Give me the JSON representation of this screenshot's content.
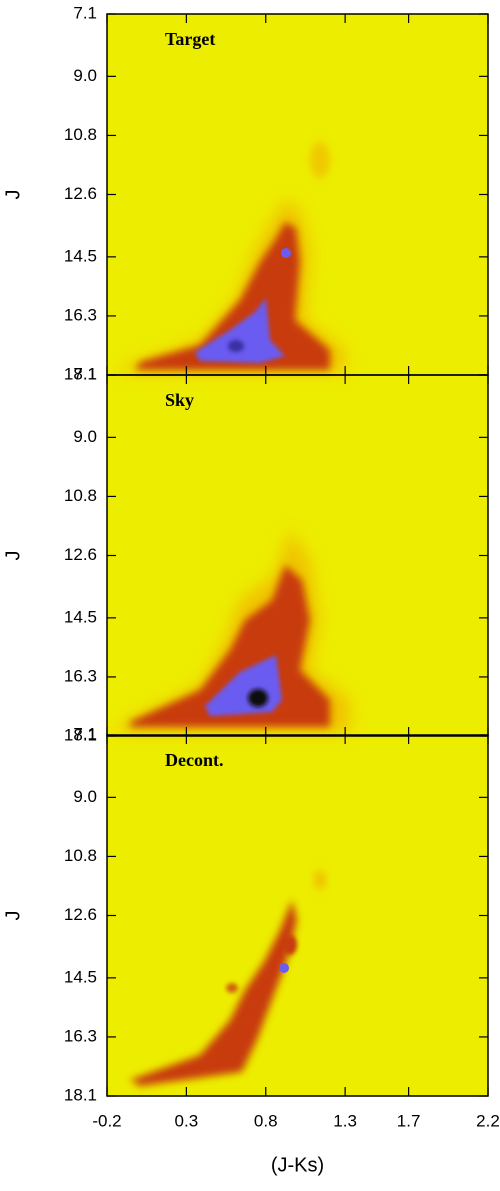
{
  "chart_data": [
    {
      "type": "density",
      "title": "Target",
      "title_color": "#7ee03a",
      "ylabel": "J",
      "xlim": [
        -0.2,
        2.2
      ],
      "xticks": [
        -0.2,
        0.3,
        0.8,
        1.3,
        1.7,
        2.2
      ],
      "ylim": [
        7.1,
        18.1
      ],
      "yticks": [
        7.1,
        {
          "value": 9,
          "label": "9.0"
        },
        10.8,
        12.6,
        14.5,
        16.3,
        18.1
      ],
      "inverted_y": true
    },
    {
      "type": "density",
      "title": "Sky",
      "title_color": "#f0a030",
      "ylabel": "J",
      "xlim": [
        -0.2,
        2.2
      ],
      "xticks": [
        -0.2,
        0.3,
        0.8,
        1.3,
        1.7,
        2.2
      ],
      "ylim": [
        7.1,
        18.1
      ],
      "yticks": [
        7.1,
        {
          "value": 9,
          "label": "9.0"
        },
        10.8,
        12.6,
        14.5,
        16.3,
        18.1
      ],
      "inverted_y": true
    },
    {
      "type": "density",
      "title": "Decont.",
      "title_color": "#000000",
      "ylabel": "J",
      "xlabel": "(J-Ks)",
      "xlim": [
        -0.2,
        2.2
      ],
      "xticks": [
        -0.2,
        0.3,
        0.8,
        1.3,
        1.7,
        2.2
      ],
      "ylim": [
        7.1,
        18.1
      ],
      "yticks": [
        7.1,
        {
          "value": 9,
          "label": "9.0"
        },
        10.8,
        12.6,
        14.5,
        16.3,
        18.1
      ],
      "inverted_y": true
    }
  ]
}
